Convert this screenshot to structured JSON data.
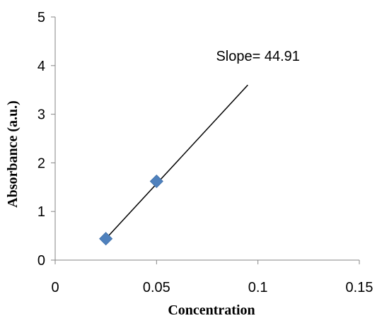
{
  "chart_data": {
    "type": "scatter",
    "title": "",
    "xlabel": "Concentration",
    "ylabel": "Absorbance (a.u.)",
    "xlim": [
      0,
      0.15
    ],
    "ylim": [
      0,
      5
    ],
    "x_ticks": [
      "0",
      "0.05",
      "0.1",
      "0.15"
    ],
    "y_ticks": [
      "0",
      "1",
      "2",
      "3",
      "4",
      "5"
    ],
    "grid": false,
    "legend": "none",
    "series": [
      {
        "x": [
          0.025,
          0.05
        ],
        "y": [
          0.44,
          1.62
        ],
        "color": "#4F81BD",
        "marker": "diamond"
      }
    ],
    "trendline": {
      "x": [
        0.025,
        0.095
      ],
      "y": [
        0.44,
        3.6
      ],
      "color": "#000000"
    },
    "annotation": {
      "text": "Slope= 44.91",
      "x": 0.1,
      "y": 4.2
    }
  }
}
